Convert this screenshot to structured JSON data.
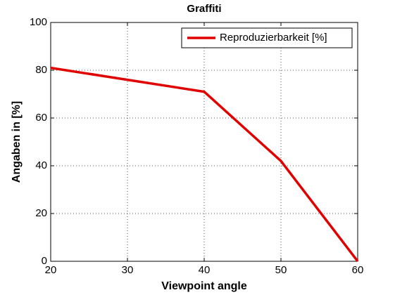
{
  "chart_data": {
    "type": "line",
    "title": "Graffiti",
    "x_label": "Viewpoint angle",
    "y_label": "Angaben in [%]",
    "x": [
      20,
      30,
      40,
      50,
      60
    ],
    "series": [
      {
        "name": "Reproduzierbarkeit [%]",
        "color": "#e00000",
        "values": [
          81,
          76,
          71,
          42,
          0
        ]
      }
    ],
    "xlim": [
      20,
      60
    ],
    "xticks": [
      20,
      30,
      40,
      50,
      60
    ],
    "ylim": [
      0,
      100
    ],
    "yticks": [
      0,
      20,
      40,
      60,
      80,
      100
    ],
    "grid": true,
    "legend": "northeast"
  }
}
